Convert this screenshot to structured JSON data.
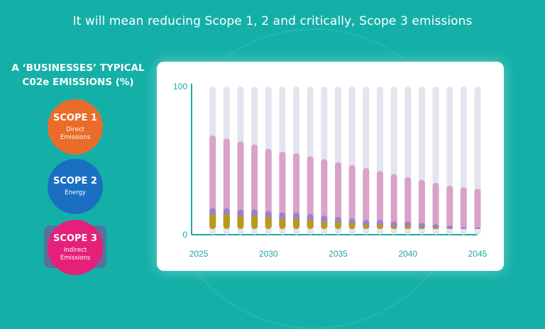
{
  "headline": "It will mean reducing Scope 1, 2 and critically, Scope 3 emissions",
  "side_title": {
    "line1": "A ‘BUSINESSES’ TYPICAL",
    "line2": "C02e EMISSIONS (%)"
  },
  "scopes": [
    {
      "title": "SCOPE 1",
      "subtitle_line1": "Direct",
      "subtitle_line2": "Emissions",
      "color": "#ea6c2a"
    },
    {
      "title": "SCOPE 2",
      "subtitle_line1": "Energy",
      "subtitle_line2": "",
      "color": "#1a6fc2"
    },
    {
      "title": "SCOPE 3",
      "subtitle_line1": "Indirect",
      "subtitle_line2": "Emissions",
      "color": "#e5207a"
    }
  ],
  "colors": {
    "background": "#14b0a8",
    "axis": "#1ba8a0",
    "track": "#e4e4ef",
    "scope1_bar": "#b89a1e",
    "scope2_bar": "#9b82c8",
    "scope3_bar": "#d9a2c9"
  },
  "chart_data": {
    "type": "bar",
    "title": "",
    "xlabel": "",
    "ylabel": "",
    "ylim": [
      0,
      100
    ],
    "yticks": [
      "0",
      "100"
    ],
    "xlim": [
      2025,
      2045
    ],
    "xtick_labels": [
      "2025",
      "2030",
      "2035",
      "2040",
      "2045"
    ],
    "categories": [
      "2026",
      "2027",
      "2028",
      "2029",
      "2030",
      "2031",
      "2032",
      "2033",
      "2034",
      "2035",
      "2036",
      "2037",
      "2038",
      "2039",
      "2040",
      "2041",
      "2042",
      "2043",
      "2044",
      "2045"
    ],
    "series": [
      {
        "name": "Scope 1",
        "values": [
          14,
          14,
          13,
          13,
          12,
          11,
          11,
          10,
          9,
          9,
          8,
          7,
          7,
          6,
          6,
          5,
          5,
          4,
          4,
          4
        ]
      },
      {
        "name": "Scope 2",
        "values": [
          18,
          18,
          17,
          17,
          16,
          15,
          15,
          14,
          13,
          12,
          11,
          10,
          10,
          9,
          9,
          8,
          7,
          6,
          5,
          5
        ]
      },
      {
        "name": "Scope 3",
        "values": [
          67,
          65,
          63,
          61,
          58,
          56,
          55,
          53,
          51,
          49,
          47,
          45,
          43,
          41,
          39,
          37,
          35,
          33,
          32,
          31
        ]
      }
    ],
    "total": [
      100,
      100,
      100,
      100,
      100,
      100,
      100,
      100,
      100,
      100,
      100,
      100,
      100,
      100,
      100,
      100,
      100,
      100,
      100,
      100
    ],
    "grid": false
  }
}
